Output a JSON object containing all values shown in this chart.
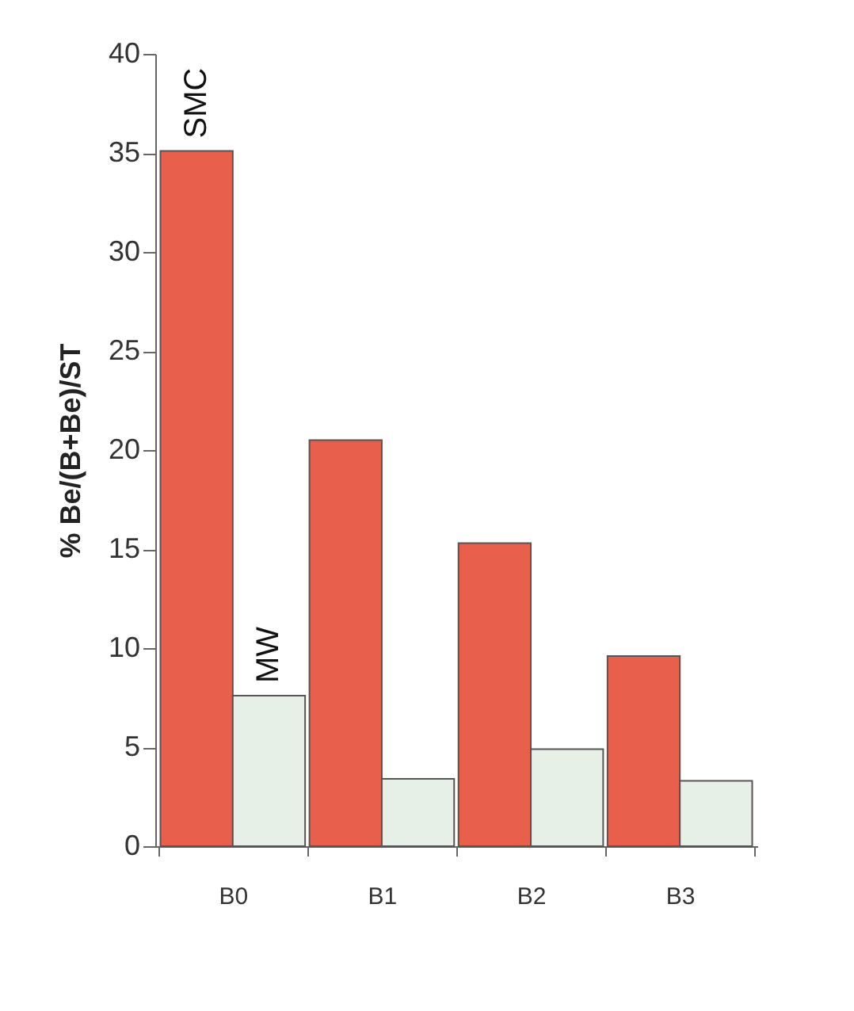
{
  "chart_data": {
    "type": "bar",
    "ylabel": "% Be/(B+Be)/ST",
    "categories": [
      "B0",
      "B1",
      "B2",
      "B3"
    ],
    "series": [
      {
        "name": "SMC",
        "color": "#e8604c",
        "values": [
          35.1,
          20.5,
          15.3,
          9.6
        ]
      },
      {
        "name": "MW",
        "color": "#e6f0e6",
        "values": [
          7.6,
          3.4,
          4.9,
          3.3
        ]
      }
    ],
    "ylim": [
      0,
      40
    ],
    "yticks": [
      0,
      5,
      10,
      15,
      20,
      25,
      30,
      35,
      40
    ],
    "grid": false,
    "legend": false
  }
}
